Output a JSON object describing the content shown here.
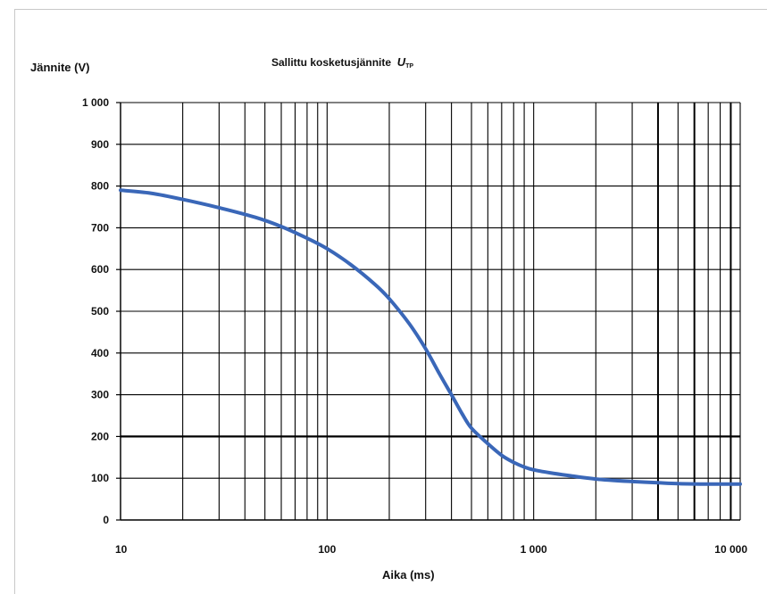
{
  "chart_data": {
    "type": "line",
    "title": "Sallittu kosketusjännite",
    "title_symbol": "U",
    "title_subscript": "TP",
    "ylabel": "Jännite (V)",
    "xlabel": "Aika   (ms)",
    "x_scale": "log",
    "xlim": [
      10,
      10000
    ],
    "ylim": [
      0,
      1000
    ],
    "x_ticks": [
      "10",
      "100",
      "1 000",
      "10 000"
    ],
    "y_ticks": [
      "0",
      "100",
      "200",
      "300",
      "400",
      "500",
      "600",
      "700",
      "800",
      "900",
      "1 000"
    ],
    "grid": true,
    "line_color": "#3a67b8",
    "series": [
      {
        "x": [
          10,
          14,
          20,
          30,
          45,
          60,
          80,
          100,
          130,
          170,
          200,
          250,
          300,
          350,
          400,
          450,
          500,
          600,
          700,
          800,
          900,
          1000,
          1200,
          1500,
          2000,
          3000,
          4000,
          5000,
          7000,
          10000
        ],
        "y": [
          790,
          783,
          768,
          748,
          725,
          703,
          675,
          650,
          612,
          565,
          530,
          470,
          410,
          350,
          300,
          255,
          220,
          183,
          155,
          138,
          127,
          120,
          113,
          106,
          98,
          92,
          89,
          87,
          86,
          86
        ]
      }
    ]
  }
}
